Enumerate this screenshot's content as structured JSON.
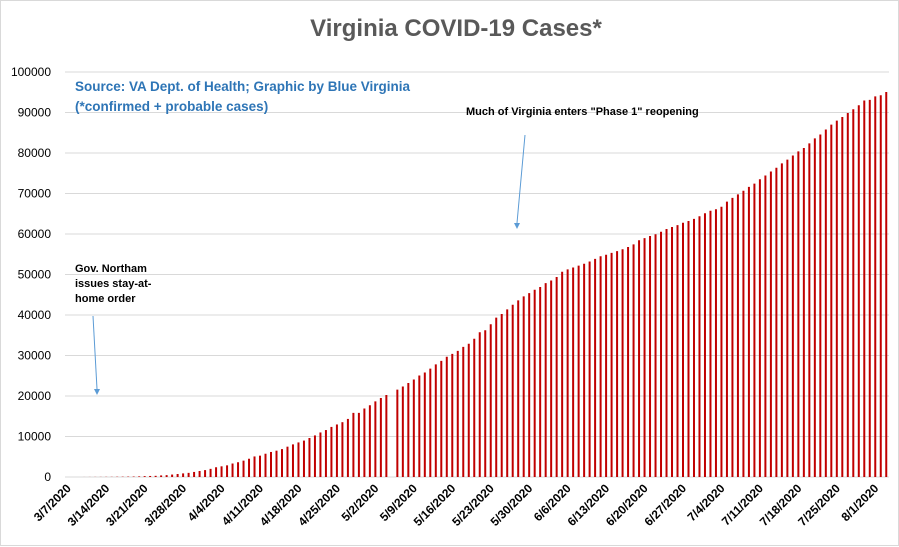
{
  "chart_data": {
    "type": "bar",
    "title": "Virginia COVID-19 Cases*",
    "source_line1": "Source: VA Dept. of Health; Graphic by Blue Virginia",
    "source_line2": "(*confirmed + probable cases)",
    "ylim": [
      0,
      100000
    ],
    "yticks": [
      0,
      10000,
      20000,
      30000,
      40000,
      50000,
      60000,
      70000,
      80000,
      90000,
      100000
    ],
    "grid": true,
    "legend": "none",
    "bar_color": "#c00000",
    "x_start": "3/7/2020",
    "x_end": "8/4/2020",
    "xtick_labels": [
      "3/7/2020",
      "3/14/2020",
      "3/21/2020",
      "3/28/2020",
      "4/4/2020",
      "4/11/2020",
      "4/18/2020",
      "4/25/2020",
      "5/2/2020",
      "5/9/2020",
      "5/16/2020",
      "5/23/2020",
      "5/30/2020",
      "6/6/2020",
      "6/13/2020",
      "6/20/2020",
      "6/27/2020",
      "7/4/2020",
      "7/11/2020",
      "7/18/2020",
      "7/25/2020",
      "8/1/2020"
    ],
    "values": [
      2,
      2,
      3,
      9,
      17,
      25,
      30,
      41,
      45,
      67,
      77,
      99,
      114,
      152,
      219,
      254,
      290,
      391,
      460,
      604,
      739,
      890,
      1020,
      1250,
      1484,
      1706,
      2012,
      2407,
      2637,
      2878,
      3333,
      3645,
      4042,
      4509,
      5077,
      5274,
      5747,
      6182,
      6500,
      6889,
      7491,
      8053,
      8537,
      8990,
      9630,
      10266,
      10998,
      11594,
      12366,
      12970,
      13535,
      14339,
      15846,
      15846,
      16901,
      17731,
      18671,
      19492,
      20256,
      0,
      21570,
      22342,
      23196,
      24081,
      25070,
      25800,
      26746,
      27813,
      28672,
      29683,
      30388,
      31140,
      32145,
      32908,
      34137,
      35749,
      36244,
      37727,
      39342,
      40249,
      41401,
      42533,
      43611,
      44607,
      45398,
      46239,
      46905,
      47856,
      48532,
      49397,
      50681,
      51251,
      51738,
      52177,
      52647,
      53211,
      53869,
      54506,
      54886,
      55331,
      55775,
      56238,
      56793,
      57443,
      58465,
      58994,
      59514,
      59946,
      60570,
      61247,
      61736,
      62189,
      62787,
      63203,
      63735,
      64393,
      65109,
      65748,
      66102,
      66740,
      67988,
      68931,
      69782,
      70670,
      71642,
      72443,
      73527,
      74431,
      75433,
      76373,
      77430,
      78375,
      79371,
      80393,
      81237,
      82364,
      83609,
      84567,
      85801,
      86994,
      87993,
      88904,
      89888,
      90801,
      91782,
      92948,
      93106,
      93972,
      94251,
      95049
    ]
  },
  "annotations": {
    "stay_at_home_line1": "Gov. Northam",
    "stay_at_home_line2": "issues stay-at-",
    "stay_at_home_line3": "home order",
    "phase1": "Much of Virginia enters \"Phase 1\" reopening"
  }
}
